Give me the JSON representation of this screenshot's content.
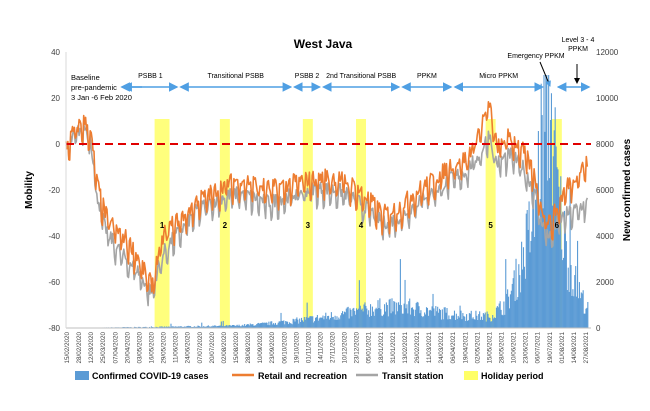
{
  "chart_data": {
    "type": "line",
    "title": "West Java",
    "ylabel_left": "Mobility",
    "ylabel_right": "New confirmed cases",
    "ylim_left": [
      -80,
      40
    ],
    "yticks_left": [
      40,
      20,
      0,
      -20,
      -40,
      -60,
      -80
    ],
    "ylim_right": [
      0,
      12000
    ],
    "yticks_right": [
      12000,
      10000,
      8000,
      6000,
      4000,
      2000,
      0
    ],
    "xlim": [
      "2020-02-15",
      "2021-08-31"
    ],
    "x_tick_labels": [
      "15/02/2020",
      "28/02/2020",
      "12/03/2020",
      "25/03/2020",
      "07/04/2020",
      "20/04/2020",
      "03/05/2020",
      "16/05/2020",
      "29/05/2020",
      "11/06/2020",
      "24/06/2020",
      "07/07/2020",
      "20/07/2020",
      "02/08/2020",
      "15/08/2020",
      "28/08/2020",
      "10/09/2020",
      "23/09/2020",
      "06/10/2020",
      "19/10/2020",
      "01/11/2020",
      "14/11/2020",
      "27/11/2020",
      "10/12/2020",
      "23/12/2020",
      "05/01/2021",
      "18/01/2021",
      "31/01/2021",
      "13/02/2021",
      "26/02/2021",
      "11/03/2021",
      "24/03/2021",
      "06/04/2021",
      "19/04/2021",
      "02/05/2021",
      "15/05/2021",
      "28/05/2021",
      "10/06/2021",
      "23/06/2021",
      "06/07/2021",
      "19/07/2021",
      "01/08/2021",
      "14/08/2021",
      "27/08/2021"
    ],
    "baseline_value": 0,
    "phases": [
      {
        "label": "PSBB 1",
        "start": "2020-04-15",
        "end": "2020-06-15"
      },
      {
        "label": "Transitional PSBB",
        "start": "2020-06-15",
        "end": "2020-10-15"
      },
      {
        "label": "PSBB 2",
        "start": "2020-10-15",
        "end": "2020-11-15"
      },
      {
        "label": "2nd Transitional PSBB",
        "start": "2020-11-15",
        "end": "2021-02-08"
      },
      {
        "label": "PPKM",
        "start": "2021-02-08",
        "end": "2021-04-05"
      },
      {
        "label": "Micro PPKM",
        "start": "2021-04-05",
        "end": "2021-07-12"
      }
    ],
    "annotations": {
      "baseline": [
        "Baseline",
        "pre-pandemic",
        "3 Jan -6 Feb 2020"
      ],
      "emergency": "Emergency PPKM",
      "level": [
        "Level 3 - 4",
        "PPKM"
      ]
    },
    "holidays": [
      {
        "label": "1",
        "start": "2020-05-20",
        "end": "2020-06-05"
      },
      {
        "label": "2",
        "start": "2020-07-29",
        "end": "2020-08-05"
      },
      {
        "label": "3",
        "start": "2020-10-26",
        "end": "2020-11-02"
      },
      {
        "label": "4",
        "start": "2020-12-22",
        "end": "2021-01-01"
      },
      {
        "label": "5",
        "start": "2021-05-10",
        "end": "2021-05-16"
      },
      {
        "label": "6",
        "start": "2021-07-20",
        "end": "2021-07-27"
      }
    ],
    "series": [
      {
        "name": "Confirmed COVID-19 cases",
        "axis": "right",
        "points": [
          [
            "2020-03-15",
            10
          ],
          [
            "2020-04-15",
            30
          ],
          [
            "2020-05-15",
            40
          ],
          [
            "2020-06-15",
            60
          ],
          [
            "2020-07-15",
            80
          ],
          [
            "2020-08-15",
            100
          ],
          [
            "2020-09-15",
            180
          ],
          [
            "2020-10-15",
            300
          ],
          [
            "2020-11-15",
            450
          ],
          [
            "2020-12-15",
            650
          ],
          [
            "2021-01-15",
            900
          ],
          [
            "2021-02-15",
            900
          ],
          [
            "2021-03-15",
            700
          ],
          [
            "2021-04-15",
            550
          ],
          [
            "2021-05-15",
            500
          ],
          [
            "2021-06-01",
            1100
          ],
          [
            "2021-06-15",
            2500
          ],
          [
            "2021-07-01",
            5000
          ],
          [
            "2021-07-10",
            8500
          ],
          [
            "2021-07-17",
            10000
          ],
          [
            "2021-07-25",
            6000
          ],
          [
            "2021-08-05",
            3000
          ],
          [
            "2021-08-15",
            1800
          ],
          [
            "2021-08-27",
            800
          ]
        ]
      },
      {
        "name": "Retail and recreation",
        "axis": "left",
        "points": [
          [
            "2020-02-15",
            -3
          ],
          [
            "2020-02-25",
            5
          ],
          [
            "2020-03-05",
            8
          ],
          [
            "2020-03-12",
            4
          ],
          [
            "2020-03-20",
            -20
          ],
          [
            "2020-03-28",
            -32
          ],
          [
            "2020-04-07",
            -38
          ],
          [
            "2020-04-20",
            -43
          ],
          [
            "2020-05-01",
            -50
          ],
          [
            "2020-05-10",
            -58
          ],
          [
            "2020-05-17",
            -63
          ],
          [
            "2020-05-24",
            -50
          ],
          [
            "2020-05-31",
            -40
          ],
          [
            "2020-06-10",
            -36
          ],
          [
            "2020-06-20",
            -33
          ],
          [
            "2020-07-05",
            -26
          ],
          [
            "2020-07-20",
            -23
          ],
          [
            "2020-08-05",
            -19
          ],
          [
            "2020-08-20",
            -17
          ],
          [
            "2020-09-05",
            -19
          ],
          [
            "2020-09-20",
            -21
          ],
          [
            "2020-10-05",
            -20
          ],
          [
            "2020-10-20",
            -18
          ],
          [
            "2020-11-05",
            -17
          ],
          [
            "2020-11-20",
            -16
          ],
          [
            "2020-12-05",
            -17
          ],
          [
            "2020-12-20",
            -20
          ],
          [
            "2021-01-05",
            -26
          ],
          [
            "2021-01-20",
            -32
          ],
          [
            "2021-02-05",
            -30
          ],
          [
            "2021-02-20",
            -24
          ],
          [
            "2021-03-05",
            -20
          ],
          [
            "2021-03-20",
            -16
          ],
          [
            "2021-04-05",
            -10
          ],
          [
            "2021-04-20",
            -8
          ],
          [
            "2021-05-05",
            6
          ],
          [
            "2021-05-14",
            16
          ],
          [
            "2021-05-22",
            -3
          ],
          [
            "2021-06-05",
            2
          ],
          [
            "2021-06-20",
            -5
          ],
          [
            "2021-07-01",
            -15
          ],
          [
            "2021-07-10",
            -30
          ],
          [
            "2021-07-18",
            -36
          ],
          [
            "2021-07-25",
            -30
          ],
          [
            "2021-08-05",
            -20
          ],
          [
            "2021-08-15",
            -15
          ],
          [
            "2021-08-27",
            -10
          ]
        ]
      },
      {
        "name": "Transit station",
        "axis": "left",
        "points": [
          [
            "2020-02-15",
            -4
          ],
          [
            "2020-02-25",
            3
          ],
          [
            "2020-03-05",
            6
          ],
          [
            "2020-03-12",
            2
          ],
          [
            "2020-03-20",
            -25
          ],
          [
            "2020-03-28",
            -38
          ],
          [
            "2020-04-07",
            -45
          ],
          [
            "2020-04-20",
            -52
          ],
          [
            "2020-05-01",
            -56
          ],
          [
            "2020-05-10",
            -62
          ],
          [
            "2020-05-17",
            -66
          ],
          [
            "2020-05-24",
            -55
          ],
          [
            "2020-05-31",
            -48
          ],
          [
            "2020-06-10",
            -42
          ],
          [
            "2020-06-20",
            -38
          ],
          [
            "2020-07-05",
            -30
          ],
          [
            "2020-07-20",
            -27
          ],
          [
            "2020-08-05",
            -24
          ],
          [
            "2020-08-20",
            -23
          ],
          [
            "2020-09-05",
            -25
          ],
          [
            "2020-09-20",
            -27
          ],
          [
            "2020-10-05",
            -25
          ],
          [
            "2020-10-20",
            -23
          ],
          [
            "2020-11-05",
            -21
          ],
          [
            "2020-11-20",
            -21
          ],
          [
            "2020-12-05",
            -22
          ],
          [
            "2020-12-20",
            -25
          ],
          [
            "2021-01-05",
            -30
          ],
          [
            "2021-01-20",
            -36
          ],
          [
            "2021-02-05",
            -34
          ],
          [
            "2021-02-20",
            -29
          ],
          [
            "2021-03-05",
            -24
          ],
          [
            "2021-03-20",
            -21
          ],
          [
            "2021-04-05",
            -16
          ],
          [
            "2021-04-20",
            -13
          ],
          [
            "2021-05-05",
            -5
          ],
          [
            "2021-05-14",
            3
          ],
          [
            "2021-05-22",
            -10
          ],
          [
            "2021-06-05",
            -6
          ],
          [
            "2021-06-20",
            -12
          ],
          [
            "2021-07-01",
            -22
          ],
          [
            "2021-07-10",
            -36
          ],
          [
            "2021-07-18",
            -42
          ],
          [
            "2021-07-25",
            -36
          ],
          [
            "2021-08-05",
            -32
          ],
          [
            "2021-08-15",
            -30
          ],
          [
            "2021-08-27",
            -27
          ]
        ]
      },
      {
        "name": "Holiday period",
        "type": "band"
      }
    ],
    "legend_position": "bottom",
    "colors": {
      "cases": "#5b9bd5",
      "retail": "#ed7d31",
      "transit": "#a5a5a5",
      "holiday": "#ffff66",
      "baseline": "#e00000",
      "phase_arrow": "#4f9fe3"
    }
  }
}
